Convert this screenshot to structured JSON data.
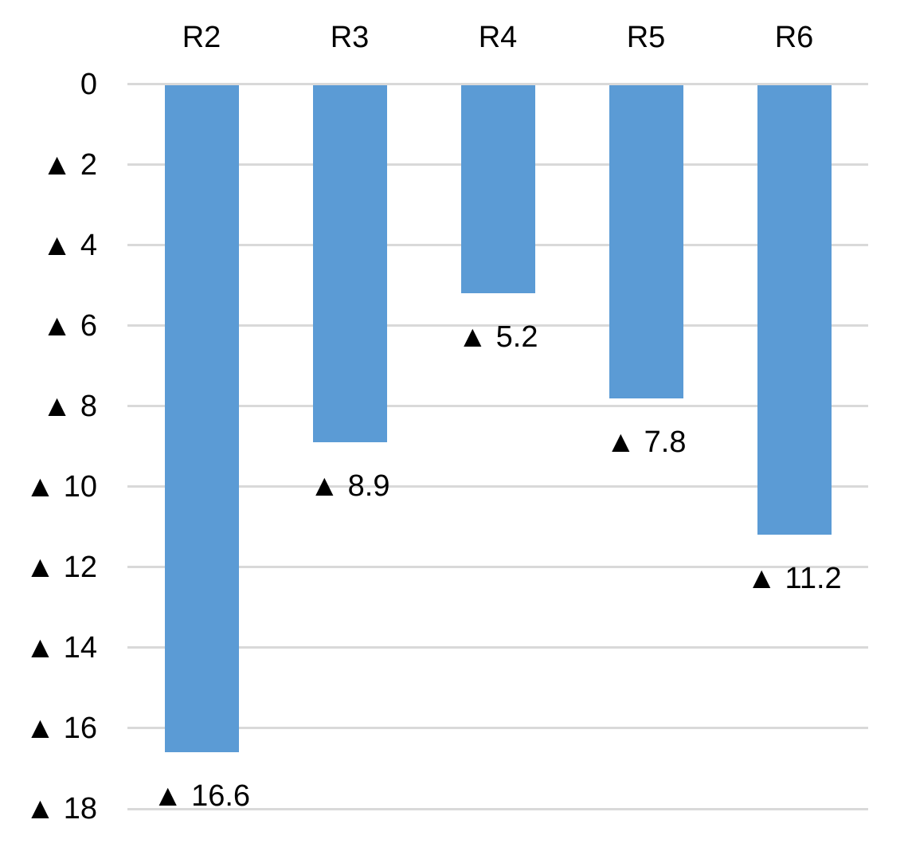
{
  "chart_data": {
    "type": "bar",
    "title": "",
    "orientation": "vertical-downward",
    "categories": [
      "R2",
      "R3",
      "R4",
      "R5",
      "R6"
    ],
    "values": [
      16.6,
      8.9,
      5.2,
      7.8,
      11.2
    ],
    "value_sign": "negative",
    "negative_marker": "▲",
    "data_labels": [
      "▲ 16.6",
      "▲ 8.9",
      "▲ 5.2",
      "▲ 7.8",
      "▲ 11.2"
    ],
    "category_axis_position": "top",
    "y_axis": {
      "direction": "down",
      "min": 0,
      "max": 18,
      "tick_step": 2,
      "tick_labels": [
        "0",
        "▲ 2",
        "▲ 4",
        "▲ 6",
        "▲ 8",
        "▲ 10",
        "▲ 12",
        "▲ 14",
        "▲ 16",
        "▲ 18"
      ]
    },
    "grid": true,
    "legend": false,
    "colors": {
      "bar": "#5B9BD5",
      "gridline": "#D9D9D9",
      "text": "#000000",
      "background": "#FFFFFF"
    }
  }
}
